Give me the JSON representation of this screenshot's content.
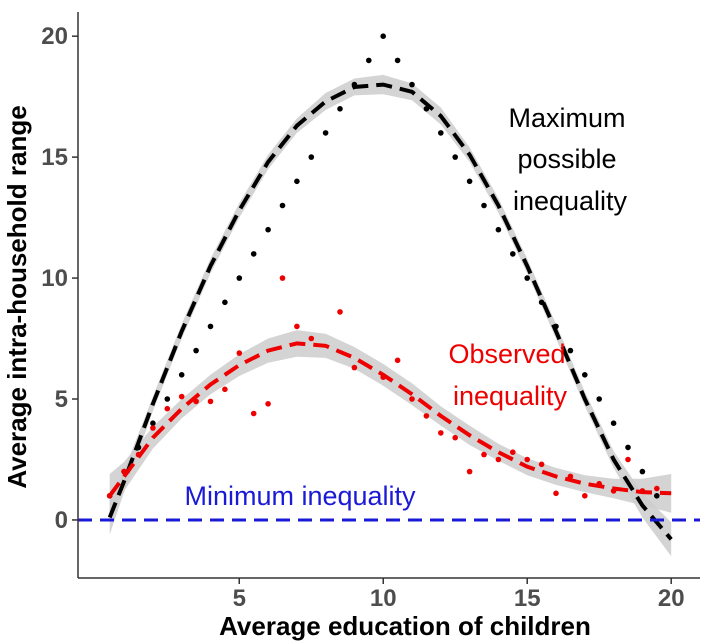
{
  "chart_data": {
    "type": "scatter",
    "title": "",
    "xlabel": "Average education of children",
    "ylabel": "Average intra-household range",
    "xlim": [
      -0.6,
      21.0
    ],
    "ylim": [
      -2.4,
      21.0
    ],
    "xticks": [
      "5",
      "10",
      "15",
      "20"
    ],
    "yticks": [
      "0",
      "5",
      "10",
      "15",
      "20"
    ],
    "grid": false,
    "legend": "none",
    "colors": {
      "max": "#000000",
      "observed": "#ee0000",
      "min": "#1a1ad6",
      "band": "#cccccc",
      "axis": "#333333"
    },
    "annotations": {
      "max_line1": "Maximum",
      "max_line2": "possible",
      "max_line3": "inequality",
      "obs_line1": "Observed",
      "obs_line2": "inequality",
      "min_line": "Minimum inequality"
    },
    "series": [
      {
        "key": "max",
        "points": [
          [
            0.5,
            1
          ],
          [
            1,
            2
          ],
          [
            1.5,
            3
          ],
          [
            2,
            4
          ],
          [
            2.5,
            5
          ],
          [
            3,
            6
          ],
          [
            3.5,
            7
          ],
          [
            4,
            8
          ],
          [
            4.5,
            9
          ],
          [
            5,
            10
          ],
          [
            5.5,
            11
          ],
          [
            6,
            12
          ],
          [
            6.5,
            13
          ],
          [
            7,
            14
          ],
          [
            7.5,
            15
          ],
          [
            8,
            16
          ],
          [
            8.5,
            17
          ],
          [
            9,
            18
          ],
          [
            9.5,
            19
          ],
          [
            10,
            20
          ],
          [
            10.5,
            19
          ],
          [
            11,
            18
          ],
          [
            11.5,
            17
          ],
          [
            12,
            16
          ],
          [
            12.5,
            15
          ],
          [
            13,
            14
          ],
          [
            13.5,
            13
          ],
          [
            14,
            12
          ],
          [
            14.5,
            11
          ],
          [
            15,
            10
          ],
          [
            15.5,
            9
          ],
          [
            16,
            8
          ],
          [
            16.5,
            7
          ],
          [
            17,
            6
          ],
          [
            17.5,
            5
          ],
          [
            18,
            4
          ],
          [
            18.5,
            3
          ],
          [
            19,
            2
          ],
          [
            19.5,
            1
          ]
        ],
        "fit": [
          [
            0.5,
            0.1
          ],
          [
            1,
            1.6
          ],
          [
            2,
            4.8
          ],
          [
            3,
            7.8
          ],
          [
            4,
            10.5
          ],
          [
            5,
            12.8
          ],
          [
            6,
            14.8
          ],
          [
            7,
            16.3
          ],
          [
            8,
            17.3
          ],
          [
            9,
            17.9
          ],
          [
            10,
            18
          ],
          [
            11,
            17.7
          ],
          [
            12,
            16.7
          ],
          [
            13,
            15.1
          ],
          [
            14,
            13
          ],
          [
            15,
            10.5
          ],
          [
            16,
            7.8
          ],
          [
            17,
            5.0
          ],
          [
            18,
            2.5
          ],
          [
            19,
            0.6
          ],
          [
            20,
            -0.8
          ]
        ],
        "band_halfwidth": [
          0.7,
          0.45,
          0.3,
          0.3,
          0.3,
          0.3,
          0.3,
          0.3,
          0.35,
          0.35,
          0.4,
          0.35,
          0.35,
          0.3,
          0.3,
          0.3,
          0.3,
          0.3,
          0.35,
          0.5,
          0.7
        ]
      },
      {
        "key": "observed",
        "points": [
          [
            0.5,
            1
          ],
          [
            1,
            2
          ],
          [
            1.5,
            2.7
          ],
          [
            2,
            3.8
          ],
          [
            2.5,
            4.6
          ],
          [
            3,
            5.1
          ],
          [
            3.5,
            4.9
          ],
          [
            4,
            4.9
          ],
          [
            4.5,
            5.4
          ],
          [
            5,
            6.9
          ],
          [
            5.5,
            4.4
          ],
          [
            6,
            4.8
          ],
          [
            6.5,
            10
          ],
          [
            7,
            8
          ],
          [
            7.5,
            7.5
          ],
          [
            8.5,
            8.6
          ],
          [
            9,
            6.3
          ],
          [
            10,
            5.9
          ],
          [
            10.5,
            6.6
          ],
          [
            11,
            5.0
          ],
          [
            11.5,
            4.3
          ],
          [
            12,
            3.6
          ],
          [
            12.5,
            3.4
          ],
          [
            13,
            2.0
          ],
          [
            13.5,
            2.7
          ],
          [
            14,
            2.5
          ],
          [
            14.5,
            2.8
          ],
          [
            15,
            2.5
          ],
          [
            15.5,
            2.3
          ],
          [
            16,
            1.1
          ],
          [
            16.5,
            1.8
          ],
          [
            17,
            1.0
          ],
          [
            17.5,
            1.5
          ],
          [
            18,
            1.2
          ],
          [
            18.5,
            2.5
          ],
          [
            19,
            1.2
          ],
          [
            19.5,
            1.3
          ]
        ],
        "fit": [
          [
            0.5,
            1.0
          ],
          [
            1,
            1.8
          ],
          [
            2,
            3.4
          ],
          [
            3,
            4.6
          ],
          [
            4,
            5.6
          ],
          [
            5,
            6.4
          ],
          [
            6,
            7.0
          ],
          [
            7,
            7.3
          ],
          [
            8,
            7.2
          ],
          [
            9,
            6.7
          ],
          [
            10,
            6.0
          ],
          [
            11,
            5.2
          ],
          [
            12,
            4.3
          ],
          [
            13,
            3.5
          ],
          [
            14,
            2.8
          ],
          [
            15,
            2.2
          ],
          [
            16,
            1.8
          ],
          [
            17,
            1.5
          ],
          [
            18,
            1.3
          ],
          [
            19,
            1.15
          ],
          [
            20,
            1.1
          ]
        ],
        "band_halfwidth": [
          0.9,
          0.6,
          0.45,
          0.4,
          0.4,
          0.45,
          0.5,
          0.55,
          0.5,
          0.45,
          0.45,
          0.45,
          0.4,
          0.4,
          0.35,
          0.35,
          0.35,
          0.35,
          0.4,
          0.55,
          0.8
        ]
      },
      {
        "key": "min",
        "value": 0
      }
    ]
  }
}
